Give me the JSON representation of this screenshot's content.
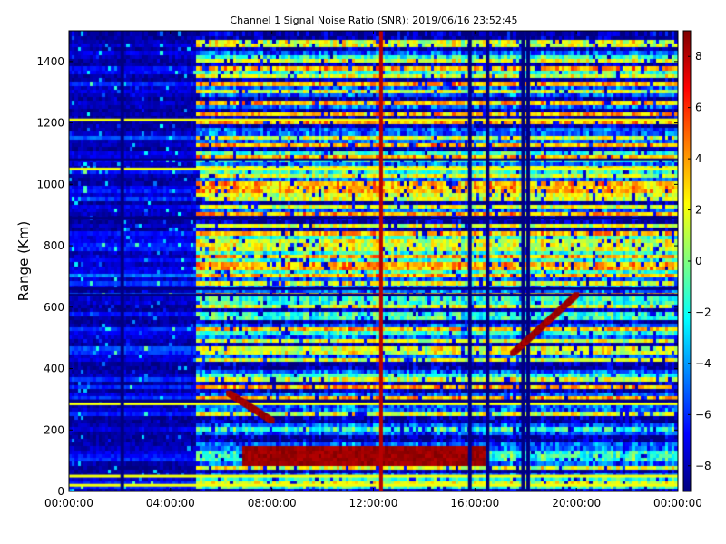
{
  "chart_data": {
    "type": "heatmap",
    "title": "Channel 1 Signal Noise Ratio (SNR): 2019/06/16 23:52:45",
    "xlabel": "",
    "ylabel": "Range (Km)",
    "x_ticks": [
      "00:00:00",
      "04:00:00",
      "08:00:00",
      "12:00:00",
      "16:00:00",
      "20:00:00",
      "00:00:00"
    ],
    "x_tick_hours": [
      0,
      4,
      8,
      12,
      16,
      20,
      24
    ],
    "xlim_hours": [
      0,
      24
    ],
    "y_ticks": [
      "0",
      "200",
      "400",
      "600",
      "800",
      "1000",
      "1200",
      "1400"
    ],
    "y_tick_values": [
      0,
      200,
      400,
      600,
      800,
      1000,
      1200,
      1400
    ],
    "ylim": [
      0,
      1500
    ],
    "colorbar": {
      "colormap": "jet",
      "min": -9,
      "max": 9,
      "ticks": [
        "8",
        "6",
        "4",
        "2",
        "0",
        "−2",
        "−4",
        "−6",
        "−8"
      ],
      "tick_values": [
        8,
        6,
        4,
        2,
        0,
        -2,
        -4,
        -6,
        -8
      ]
    },
    "colormap_stops": [
      "#00007f",
      "#0000ff",
      "#007fff",
      "#00ffff",
      "#7fff7f",
      "#ffff00",
      "#ff7f00",
      "#ff0000",
      "#7f0000"
    ],
    "features": {
      "quiet_period_hours": [
        0,
        5
      ],
      "active_period_hours": [
        5,
        24
      ],
      "strong_echo_band": {
        "hours": [
          6.8,
          16.5
        ],
        "range_km": [
          90,
          150
        ],
        "snr": 9
      },
      "vertical_stripes_hours": [
        2.1,
        12.3,
        15.8,
        16.5,
        17.9,
        18.1
      ],
      "dark_horizontal_lines_km": [
        295,
        640,
        660,
        890,
        1080
      ],
      "bright_horizontal_lines_km": [
        20,
        50,
        285,
        1050,
        1210
      ],
      "rising_echo_trace": {
        "start": {
          "hour": 17.5,
          "range_km": 450
        },
        "end": {
          "hour": 20,
          "range_km": 640
        }
      },
      "descending_echo_trace": {
        "start": {
          "hour": 6.3,
          "range_km": 320
        },
        "end": {
          "hour": 8,
          "range_km": 230
        }
      }
    }
  }
}
